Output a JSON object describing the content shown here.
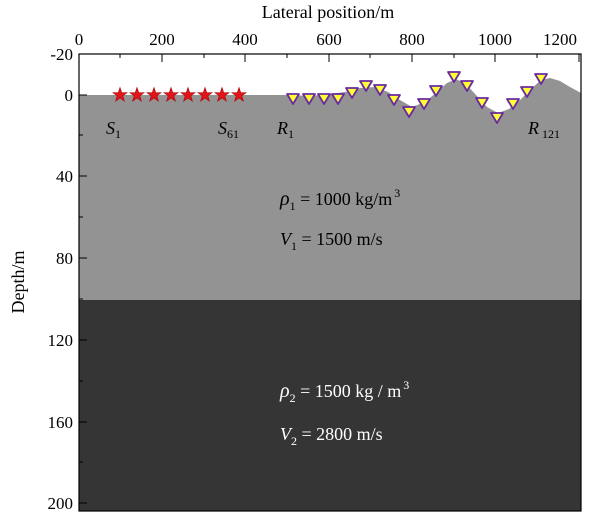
{
  "top_axis": {
    "title": "Lateral position/m",
    "ticks": [
      "0",
      "200",
      "400",
      "600",
      "800",
      "1000",
      "1200"
    ]
  },
  "left_axis": {
    "title": "Depth/m",
    "ticks": [
      "-20",
      "0",
      "40",
      "80",
      "120",
      "160",
      "200"
    ]
  },
  "sources": {
    "first": {
      "letter": "S",
      "index": "1"
    },
    "last": {
      "letter": "S",
      "index": "61"
    },
    "icon": "red-star-icon",
    "color": "#e0151b",
    "count_drawn": 8
  },
  "receivers": {
    "first": {
      "letter": "R",
      "index": "1"
    },
    "last": {
      "letter": "R",
      "index": "121"
    },
    "icon": "yellow-triangle-icon",
    "fill": "#ffff33",
    "stroke": "#6a2aa0"
  },
  "layer1": {
    "color": "#939393",
    "rho_symbol": "ρ",
    "rho_sub": "1",
    "rho_value": " = 1000 kg/m",
    "rho_exp": "3",
    "v_symbol": "V",
    "v_sub": "1",
    "v_value": " = 1500 m/s"
  },
  "layer2": {
    "color": "#353535",
    "rho_symbol": "ρ",
    "rho_sub": "2",
    "rho_value": " = 1500 kg / m",
    "rho_exp": "3",
    "v_symbol": "V",
    "v_sub": "2",
    "v_value": " = 2800 m/s"
  }
}
